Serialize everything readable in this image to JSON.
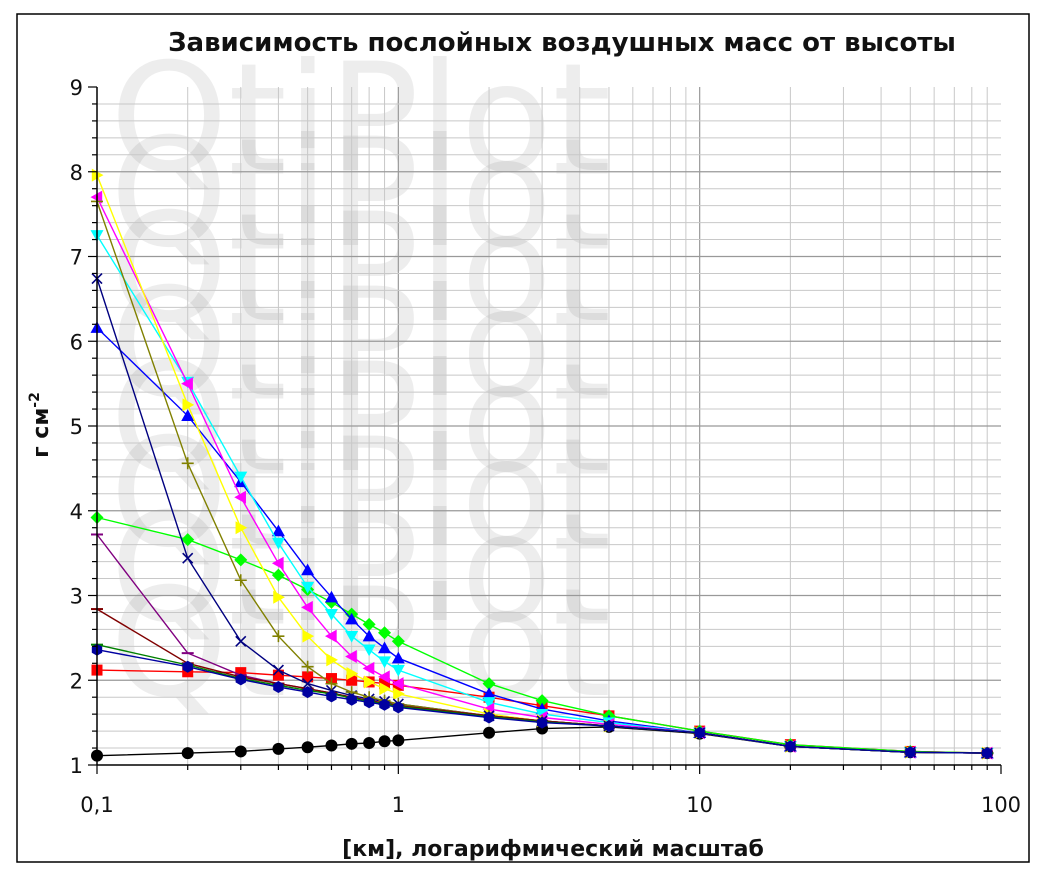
{
  "chart_data": {
    "type": "line",
    "title": "Зависимость послойных воздушных масс от высоты",
    "xlabel": "[км], логарифмический масштаб",
    "ylabel": "г см",
    "ylabel_sup": "-2",
    "watermark": "QtiPlot",
    "x_scale": "log",
    "xlim": [
      0.1,
      100
    ],
    "ylim": [
      1,
      9
    ],
    "x_ticks": [
      {
        "value": 0.1,
        "label": "0,1"
      },
      {
        "value": 1,
        "label": "1"
      },
      {
        "value": 10,
        "label": "10"
      },
      {
        "value": 100,
        "label": "100"
      }
    ],
    "y_ticks": [
      {
        "value": 1,
        "label": "1"
      },
      {
        "value": 2,
        "label": "2"
      },
      {
        "value": 3,
        "label": "3"
      },
      {
        "value": 4,
        "label": "4"
      },
      {
        "value": 5,
        "label": "5"
      },
      {
        "value": 6,
        "label": "6"
      },
      {
        "value": 7,
        "label": "7"
      },
      {
        "value": 8,
        "label": "8"
      },
      {
        "value": 9,
        "label": "9"
      }
    ],
    "grid": true,
    "legend": "none",
    "series": [
      {
        "color": "#000000",
        "marker": "circle",
        "x": [
          0.1,
          0.2,
          0.3,
          0.4,
          0.5,
          0.6,
          0.7,
          0.8,
          0.9,
          1,
          2,
          3,
          5,
          10,
          20,
          50,
          90
        ],
        "y": [
          1.11,
          1.14,
          1.16,
          1.19,
          1.21,
          1.23,
          1.25,
          1.26,
          1.28,
          1.29,
          1.38,
          1.43,
          1.45,
          1.37,
          1.22,
          1.15,
          1.14
        ]
      },
      {
        "color": "#ff0000",
        "marker": "square",
        "x": [
          0.1,
          0.2,
          0.3,
          0.4,
          0.5,
          0.6,
          0.7,
          0.8,
          0.9,
          1,
          2,
          3,
          5,
          10,
          20,
          50,
          90
        ],
        "y": [
          2.12,
          2.1,
          2.09,
          2.06,
          2.04,
          2.02,
          2.0,
          1.98,
          1.96,
          1.94,
          1.8,
          1.7,
          1.58,
          1.4,
          1.24,
          1.16,
          1.14
        ]
      },
      {
        "color": "#00ff00",
        "marker": "diamond",
        "x": [
          0.1,
          0.2,
          0.3,
          0.4,
          0.5,
          0.6,
          0.7,
          0.8,
          0.9,
          1,
          2,
          3,
          5,
          10,
          20,
          50,
          90
        ],
        "y": [
          3.92,
          3.66,
          3.42,
          3.24,
          3.07,
          2.92,
          2.78,
          2.66,
          2.56,
          2.46,
          1.96,
          1.76,
          1.58,
          1.4,
          1.24,
          1.16,
          1.14
        ]
      },
      {
        "color": "#0000ff",
        "marker": "triangle-up",
        "x": [
          0.1,
          0.2,
          0.3,
          0.4,
          0.5,
          0.6,
          0.7,
          0.8,
          0.9,
          1,
          2,
          3,
          5,
          10,
          20,
          50,
          90
        ],
        "y": [
          6.16,
          5.12,
          4.34,
          3.76,
          3.3,
          2.98,
          2.72,
          2.52,
          2.38,
          2.26,
          1.84,
          1.66,
          1.52,
          1.38,
          1.22,
          1.15,
          1.14
        ]
      },
      {
        "color": "#00ffff",
        "marker": "triangle-down",
        "x": [
          0.1,
          0.2,
          0.3,
          0.4,
          0.5,
          0.6,
          0.7,
          0.8,
          0.9,
          1,
          2,
          3,
          5,
          10,
          20,
          50,
          90
        ],
        "y": [
          7.25,
          5.52,
          4.4,
          3.62,
          3.1,
          2.78,
          2.52,
          2.36,
          2.22,
          2.12,
          1.74,
          1.6,
          1.5,
          1.38,
          1.22,
          1.15,
          1.14
        ]
      },
      {
        "color": "#ff00ff",
        "marker": "triangle-left",
        "x": [
          0.1,
          0.2,
          0.3,
          0.4,
          0.5,
          0.6,
          0.7,
          0.8,
          0.9,
          1,
          2,
          3,
          5,
          10,
          20,
          50,
          90
        ],
        "y": [
          7.7,
          5.5,
          4.16,
          3.38,
          2.86,
          2.52,
          2.28,
          2.14,
          2.04,
          1.96,
          1.66,
          1.56,
          1.48,
          1.38,
          1.22,
          1.15,
          1.14
        ]
      },
      {
        "color": "#ffff00",
        "marker": "triangle-right",
        "x": [
          0.1,
          0.2,
          0.3,
          0.4,
          0.5,
          0.6,
          0.7,
          0.8,
          0.9,
          1,
          2,
          3,
          5,
          10,
          20,
          50,
          90
        ],
        "y": [
          7.96,
          5.25,
          3.8,
          2.98,
          2.52,
          2.24,
          2.08,
          1.98,
          1.9,
          1.84,
          1.6,
          1.52,
          1.46,
          1.38,
          1.22,
          1.15,
          1.14
        ]
      },
      {
        "color": "#000080",
        "marker": "cross",
        "x": [
          0.1,
          0.2,
          0.3,
          0.4,
          0.5,
          0.6,
          0.7,
          0.8,
          0.9,
          1,
          2,
          3,
          5,
          10,
          20,
          50,
          90
        ],
        "y": [
          6.74,
          3.44,
          2.46,
          2.12,
          1.96,
          1.88,
          1.82,
          1.78,
          1.75,
          1.72,
          1.58,
          1.52,
          1.46,
          1.38,
          1.22,
          1.15,
          1.14
        ]
      },
      {
        "color": "#808000",
        "marker": "plus",
        "x": [
          0.1,
          0.2,
          0.3,
          0.4,
          0.5,
          0.6,
          0.7,
          0.8,
          0.9,
          1,
          2,
          3,
          5,
          10,
          20,
          50,
          90
        ],
        "y": [
          7.65,
          4.56,
          3.18,
          2.52,
          2.16,
          1.96,
          1.86,
          1.8,
          1.76,
          1.72,
          1.58,
          1.52,
          1.46,
          1.38,
          1.22,
          1.15,
          1.14
        ]
      },
      {
        "color": "#800080",
        "marker": "dash",
        "x": [
          0.1,
          0.2,
          0.3,
          0.4,
          0.5,
          0.6,
          0.7,
          0.8,
          0.9,
          1,
          2,
          3,
          5,
          10,
          20,
          50,
          90
        ],
        "y": [
          3.72,
          2.32,
          2.06,
          1.96,
          1.9,
          1.85,
          1.8,
          1.76,
          1.73,
          1.7,
          1.58,
          1.52,
          1.46,
          1.38,
          1.22,
          1.15,
          1.14
        ]
      },
      {
        "color": "#800000",
        "marker": "dash",
        "x": [
          0.1,
          0.2,
          0.3,
          0.4,
          0.5,
          0.6,
          0.7,
          0.8,
          0.9,
          1,
          2,
          3,
          5,
          10,
          20,
          50,
          90
        ],
        "y": [
          2.84,
          2.2,
          2.04,
          1.96,
          1.9,
          1.85,
          1.8,
          1.76,
          1.73,
          1.7,
          1.58,
          1.52,
          1.46,
          1.38,
          1.22,
          1.15,
          1.14
        ]
      },
      {
        "color": "#008000",
        "marker": "dash",
        "x": [
          0.1,
          0.2,
          0.3,
          0.4,
          0.5,
          0.6,
          0.7,
          0.8,
          0.9,
          1,
          2,
          3,
          5,
          10,
          20,
          50,
          90
        ],
        "y": [
          2.42,
          2.18,
          2.02,
          1.94,
          1.88,
          1.84,
          1.79,
          1.75,
          1.72,
          1.69,
          1.57,
          1.51,
          1.46,
          1.38,
          1.22,
          1.15,
          1.14
        ]
      },
      {
        "color": "#0000a0",
        "marker": "hexagon",
        "x": [
          0.1,
          0.2,
          0.3,
          0.4,
          0.5,
          0.6,
          0.7,
          0.8,
          0.9,
          1,
          2,
          3,
          5,
          10,
          20,
          50,
          90
        ],
        "y": [
          2.36,
          2.16,
          2.01,
          1.92,
          1.86,
          1.81,
          1.77,
          1.74,
          1.71,
          1.68,
          1.56,
          1.5,
          1.46,
          1.38,
          1.22,
          1.15,
          1.14
        ]
      }
    ]
  }
}
